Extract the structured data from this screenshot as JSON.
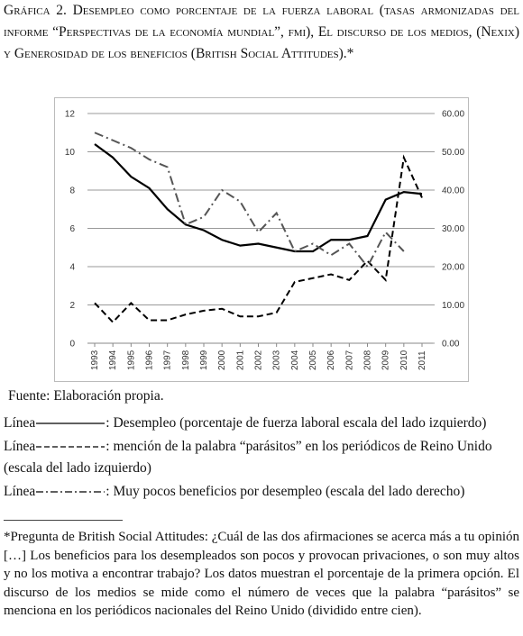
{
  "caption": "Gráfica 2. Desempleo como porcentaje de la fuerza laboral (tasas armonizadas del informe “Perspectivas de la economía mundial”, fmi), El discurso de los medios, (Nexix) y Generosidad de los beneficios (British Social Attitudes).*",
  "chart_data": {
    "type": "line",
    "categories": [
      "1993",
      "1994",
      "1995",
      "1996",
      "1997",
      "1998",
      "1999",
      "2000",
      "2001",
      "2002",
      "2003",
      "2004",
      "2005",
      "2006",
      "2007",
      "2008",
      "2009",
      "2010",
      "2011"
    ],
    "ylim": [
      0,
      12
    ],
    "yticks": [
      0,
      2,
      4,
      6,
      8,
      10,
      12
    ],
    "y2lim": [
      0,
      60
    ],
    "y2ticks": [
      {
        "value": 0,
        "label": "0.00"
      },
      {
        "value": 10,
        "label": "10.00"
      },
      {
        "value": 20,
        "label": "20.00"
      },
      {
        "value": 30,
        "label": "30.00"
      },
      {
        "value": 40,
        "label": "40.00"
      },
      {
        "value": 50,
        "label": "50.00"
      },
      {
        "value": 60,
        "label": "60.00"
      }
    ],
    "grid": true,
    "legend_prefix": "Línea",
    "series": [
      {
        "name": ": Desempleo (porcentaje de fuerza laboral escala del lado izquierdo)",
        "color": "#000000",
        "style": "solid",
        "values": [
          10.4,
          9.7,
          8.7,
          8.1,
          7.0,
          6.2,
          5.9,
          5.4,
          5.1,
          5.2,
          5.0,
          4.8,
          4.8,
          5.4,
          5.4,
          5.6,
          7.5,
          7.9,
          7.8
        ]
      },
      {
        "name": ": mención de la palabra “parásitos” en los periódicos de Reino Unido (escala del lado izquierdo)",
        "color": "#000000",
        "style": "dashed",
        "values": [
          2.1,
          1.1,
          2.1,
          1.2,
          1.2,
          1.5,
          1.7,
          1.8,
          1.4,
          1.4,
          1.6,
          3.2,
          3.4,
          3.6,
          3.3,
          4.3,
          3.3,
          9.7,
          7.6
        ]
      },
      {
        "name": ": Muy pocos beneficios por desempleo (escala del lado derecho)",
        "color": "#555555",
        "style": "dashdot",
        "axis": "y2",
        "values": [
          55,
          53,
          51,
          48,
          46,
          31,
          33,
          40,
          37,
          29,
          34,
          24,
          26,
          23,
          26,
          20,
          29,
          24,
          null
        ]
      }
    ]
  },
  "source": "Fuente: Elaboración propia.",
  "footnote": "*Pregunta de British Social Attitudes: ¿Cuál de las dos afirmaciones se acerca más a tu opinión […] Los beneficios para los desempleados son pocos y provocan privaciones, o son muy altos y no los motiva a encontrar trabajo? Los datos muestran el porcentaje de la primera opción. El discurso de los medios se mide como el número de veces que la palabra “parásitos” se menciona en los periódicos nacionales del Reino Unido (dividido entre cien)."
}
